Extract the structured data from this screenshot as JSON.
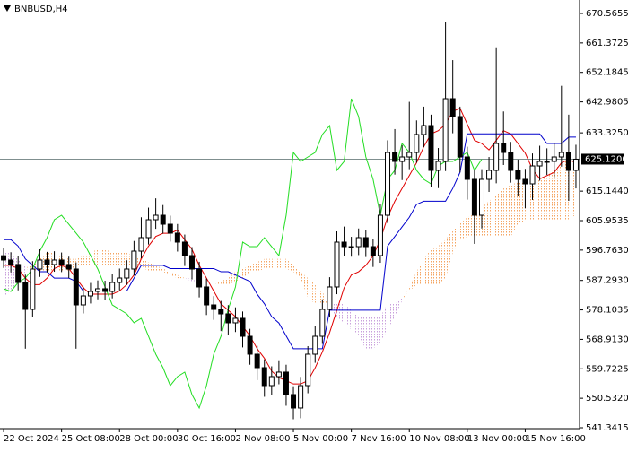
{
  "chart_data": {
    "type": "candlestick",
    "title": "BNBUSD,H4",
    "categories": [
      "22 Oct 2024",
      null,
      null,
      null,
      null,
      null,
      null,
      null,
      "25 Oct 08:00",
      null,
      null,
      null,
      null,
      null,
      null,
      null,
      "28 Oct 00:00",
      null,
      null,
      null,
      null,
      null,
      null,
      null,
      "30 Oct 16:00",
      null,
      null,
      null,
      null,
      null,
      null,
      null,
      "2 Nov 08:00",
      null,
      null,
      null,
      null,
      null,
      null,
      null,
      "5 Nov 00:00",
      null,
      null,
      null,
      null,
      null,
      null,
      null,
      "7 Nov 16:00",
      null,
      null,
      null,
      null,
      null,
      null,
      null,
      "10 Nov 08:00",
      null,
      null,
      null,
      null,
      null,
      null,
      null,
      "13 Nov 00:00",
      null,
      null,
      null,
      null,
      null,
      null,
      null,
      "15 Nov 16:00",
      null,
      null,
      null,
      null,
      null,
      null,
      null
    ],
    "open": [
      595.0,
      593.65,
      592.25,
      586.65,
      578.26,
      590.85,
      593.65,
      592.25,
      593.65,
      592.25,
      590.85,
      579.66,
      582.46,
      583.86,
      584.7,
      583.86,
      586.65,
      588.05,
      590.85,
      596.44,
      600.64,
      606.23,
      607.63,
      604.83,
      602.04,
      599.24,
      595.04,
      590.85,
      585.26,
      579.66,
      578.26,
      576.86,
      574.07,
      575.47,
      569.87,
      564.28,
      560.08,
      554.49,
      557.29,
      558.69,
      551.69,
      547.5,
      554.49,
      564.28,
      569.87,
      578.26,
      585.26,
      599.24,
      597.84,
      597.84,
      600.64,
      597.84,
      595.04,
      607.63,
      627.21,
      624.41,
      625.81,
      627.21,
      632.81,
      635.6,
      621.62,
      624.41,
      643.99,
      638.4,
      625.81,
      618.82,
      607.63,
      618.82,
      621.62,
      630.01,
      627.21,
      621.62,
      618.82,
      617.42,
      623.01,
      624.41,
      624.41,
      625.81,
      627.21,
      621.62
    ],
    "high": [
      597.5,
      596.1,
      594.8,
      589.1,
      593.3,
      597.0,
      596.2,
      596.4,
      596.0,
      594.7,
      592.9,
      585.3,
      586.5,
      587.3,
      587.2,
      589.4,
      591.0,
      593.6,
      599.6,
      607.0,
      610.0,
      612.9,
      610.8,
      607.5,
      604.9,
      601.6,
      597.7,
      593.1,
      587.9,
      582.4,
      580.9,
      579.6,
      578.9,
      577.6,
      572.2,
      566.9,
      562.7,
      560.5,
      562.4,
      561.0,
      554.3,
      557.2,
      566.8,
      573.1,
      581.4,
      588.3,
      602.6,
      604.1,
      600.9,
      603.5,
      603.0,
      600.2,
      611.0,
      631.0,
      634.5,
      629.5,
      643.0,
      637.2,
      641.5,
      639.0,
      628.6,
      667.8,
      656.0,
      641.5,
      629.0,
      621.7,
      622.0,
      625.8,
      660.0,
      640.0,
      630.5,
      625.0,
      622.1,
      626.9,
      629.3,
      628.5,
      630.1,
      648.0,
      639.0,
      629.6
    ],
    "low": [
      591.2,
      589.8,
      584.2,
      566.0,
      576.0,
      588.4,
      589.8,
      590.0,
      589.9,
      588.0,
      566.0,
      577.0,
      580.1,
      581.4,
      581.2,
      581.7,
      584.2,
      585.9,
      588.8,
      594.2,
      598.5,
      603.4,
      601.9,
      599.4,
      596.3,
      591.8,
      587.6,
      582.0,
      576.5,
      575.0,
      571.5,
      570.3,
      571.2,
      566.4,
      561.0,
      556.2,
      551.0,
      551.6,
      554.9,
      548.2,
      544.0,
      544.3,
      552.1,
      561.6,
      567.5,
      575.9,
      583.0,
      594.8,
      594.7,
      595.2,
      594.6,
      591.5,
      592.8,
      605.2,
      620.3,
      618.6,
      622.0,
      624.0,
      628.9,
      616.5,
      616.1,
      621.4,
      633.2,
      621.0,
      612.5,
      598.7,
      603.5,
      614.9,
      617.6,
      623.3,
      617.8,
      613.6,
      609.8,
      612.4,
      618.4,
      620.2,
      619.4,
      622.8,
      612.1,
      616.0
    ],
    "close": [
      593.65,
      592.25,
      586.65,
      578.26,
      590.85,
      593.65,
      592.25,
      593.65,
      592.25,
      590.85,
      579.66,
      582.46,
      583.86,
      584.7,
      583.86,
      586.65,
      588.05,
      590.85,
      596.44,
      600.64,
      606.23,
      607.63,
      604.83,
      602.04,
      599.24,
      595.04,
      590.85,
      585.26,
      579.66,
      578.26,
      576.86,
      574.07,
      575.47,
      569.87,
      564.28,
      560.08,
      554.49,
      557.29,
      558.69,
      551.69,
      547.5,
      554.49,
      564.28,
      569.87,
      578.26,
      585.26,
      599.24,
      597.84,
      597.84,
      600.64,
      597.84,
      595.04,
      607.63,
      627.21,
      624.41,
      625.81,
      627.21,
      632.81,
      635.6,
      621.62,
      624.41,
      643.99,
      638.4,
      625.81,
      618.82,
      607.63,
      618.82,
      621.62,
      630.01,
      627.21,
      621.62,
      618.82,
      617.42,
      623.01,
      624.41,
      624.41,
      625.81,
      627.21,
      621.62,
      625.12
    ],
    "up_color": "#ffffff",
    "down_color": "#000000",
    "lines": [
      {
        "color": "#e00000",
        "values": [
          592,
          592,
          591,
          588,
          586,
          586,
          588,
          591,
          592,
          591,
          588,
          585,
          583,
          583,
          583,
          583,
          584,
          586,
          589,
          594,
          598,
          601,
          602,
          602,
          603,
          600,
          597,
          592,
          588,
          584,
          580,
          578,
          576,
          573,
          570,
          566,
          563,
          559,
          557,
          556,
          555,
          555,
          556,
          560,
          565,
          571,
          578,
          585,
          589,
          590,
          592,
          595,
          600,
          607,
          612,
          616,
          620,
          624,
          629,
          633,
          634,
          636,
          640,
          641,
          636,
          631,
          630,
          628,
          631,
          634,
          633,
          630,
          627,
          622,
          619,
          620,
          621,
          624,
          625,
          624
        ]
      },
      {
        "color": "#0000cc",
        "values": [
          600,
          600,
          598,
          594,
          592,
          590,
          590,
          588,
          588,
          588,
          587,
          584,
          584,
          584,
          584,
          584,
          584,
          584,
          588,
          592,
          592,
          592,
          592,
          591,
          591,
          591,
          591,
          591,
          591,
          591,
          590,
          590,
          589,
          588,
          587,
          583,
          580,
          576,
          574,
          570,
          566,
          566,
          566,
          566,
          566,
          578,
          578,
          578,
          578,
          578,
          578,
          578,
          578,
          598,
          601,
          604,
          607,
          611,
          612,
          612,
          612,
          612,
          616,
          621,
          633,
          633,
          633,
          633,
          633,
          633,
          633,
          633,
          633,
          633,
          633,
          630,
          630,
          630,
          632,
          632
        ]
      },
      {
        "color": "#22dd22",
        "values": [
          584.7,
          583.86,
          586.65,
          588.05,
          590.85,
          596.44,
          600.64,
          606.23,
          607.63,
          604.83,
          602.04,
          599.24,
          595.04,
          590.85,
          585.26,
          579.66,
          578.26,
          576.86,
          574.07,
          575.47,
          569.87,
          564.28,
          560.08,
          554.49,
          557.29,
          558.69,
          551.69,
          547.5,
          554.49,
          564.28,
          569.87,
          578.26,
          585.26,
          599.24,
          597.84,
          597.84,
          600.64,
          597.84,
          595.04,
          607.63,
          627.21,
          624.41,
          625.81,
          627.21,
          632.81,
          635.6,
          621.62,
          624.41,
          643.99,
          638.4,
          625.81,
          618.82,
          607.63,
          618.82,
          621.62,
          630.01,
          627.21,
          621.62,
          618.82,
          617.42,
          623.01,
          624.41,
          624.41,
          625.81,
          627.21,
          621.62,
          625.12,
          null,
          null,
          null,
          null,
          null,
          null,
          null,
          null,
          null,
          null,
          null,
          null,
          null
        ]
      }
    ],
    "cloud": {
      "up_color": "#f4a460",
      "down_color": "#c9a0dc",
      "span_a": [
        582,
        584,
        587,
        590,
        593,
        594,
        596,
        596,
        595,
        594,
        594,
        595,
        596,
        597,
        597,
        596,
        596,
        596,
        595,
        594,
        593,
        592,
        591,
        590,
        589,
        588,
        587,
        586,
        586,
        586,
        587,
        588,
        590,
        591,
        592,
        593,
        594,
        594,
        594,
        594,
        592,
        590,
        588,
        586,
        584,
        578,
        576,
        574,
        572,
        570,
        566,
        566,
        568,
        572,
        576,
        581,
        585,
        590,
        594,
        597,
        598,
        600,
        603,
        605,
        607,
        608,
        610,
        612,
        614,
        616,
        617,
        618,
        618,
        618,
        619,
        620,
        622,
        624,
        625,
        625
      ],
      "span_b": [
        596,
        596,
        594,
        592,
        590,
        590,
        590,
        590,
        590,
        590,
        592,
        592,
        592,
        592,
        592,
        592,
        592,
        592,
        592,
        592,
        590,
        590,
        590,
        589,
        588,
        588,
        588,
        586,
        586,
        586,
        586,
        586,
        587,
        588,
        590,
        590,
        591,
        591,
        591,
        591,
        590,
        588,
        582,
        580,
        580,
        580,
        580,
        580,
        578,
        576,
        576,
        576,
        576,
        580,
        580,
        582,
        584,
        586,
        586,
        586,
        586,
        588,
        596,
        600,
        601,
        601,
        601,
        601,
        601,
        601,
        601,
        605,
        606,
        606,
        606,
        606,
        606,
        606,
        606,
        608
      ]
    },
    "ylim": [
      541.06,
      674.76
    ],
    "yticks": [
      670.5655,
      661.3725,
      652.1845,
      642.9805,
      {
        "value": 633.325,
        "label": "633.3250"
      },
      {
        "value": 615.144,
        "label": "615.1440"
      },
      605.9535,
      {
        "value": 596.763,
        "label": "596.7630"
      },
      {
        "value": 587.293,
        "label": "587.2930"
      },
      578.1035,
      {
        "value": 568.913,
        "label": "568.9130"
      },
      559.7225,
      {
        "value": 550.532,
        "label": "550.5320"
      },
      541.3415
    ],
    "current_price": {
      "value": 625.12,
      "label": "625.1200"
    }
  }
}
